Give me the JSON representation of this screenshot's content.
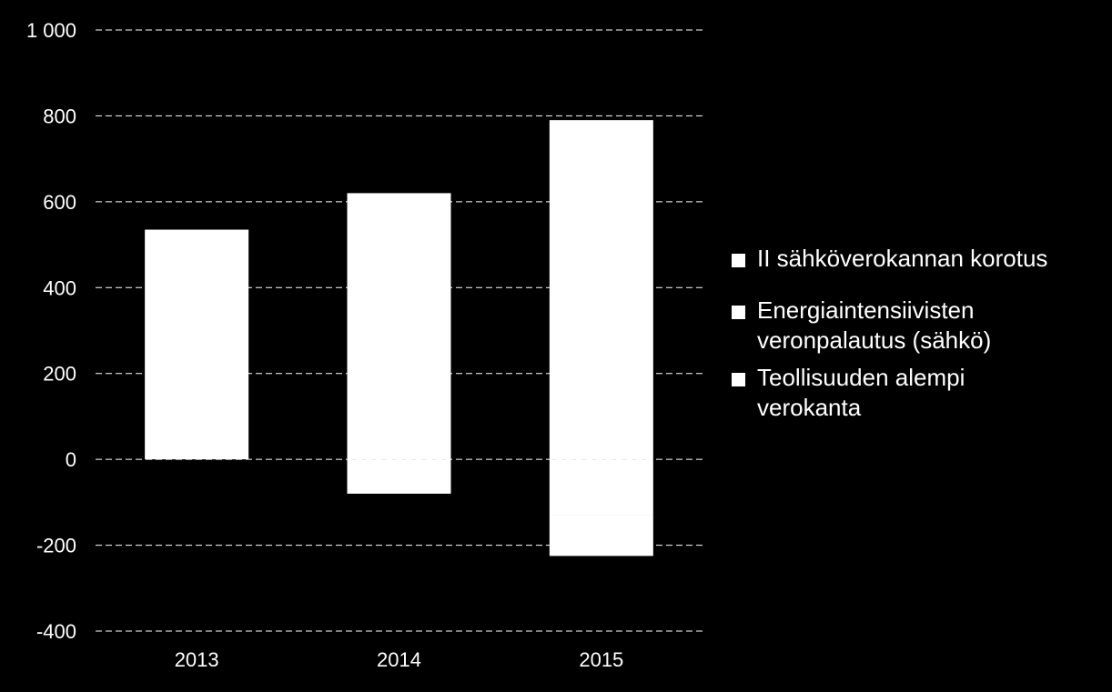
{
  "chart_data": {
    "type": "bar",
    "stacked": true,
    "categories": [
      "2013",
      "2014",
      "2015"
    ],
    "series": [
      {
        "name": "II sähköverokannan korotus",
        "values": [
          535,
          620,
          790
        ]
      },
      {
        "name": "Energiaintensiivisten veronpalautus (sähkö)",
        "values": [
          0,
          -80,
          -130
        ]
      },
      {
        "name": "Teollisuuden alempi verokanta",
        "values": [
          0,
          0,
          -95
        ]
      }
    ],
    "ylim": [
      -400,
      1000
    ],
    "yticks": [
      -400,
      -200,
      0,
      200,
      400,
      600,
      800,
      1000
    ],
    "ytick_labels": [
      "-400",
      "-200",
      "0",
      "200",
      "400",
      "600",
      "800",
      "1 000"
    ],
    "grid": true,
    "legend_position": "right",
    "colors": {
      "background": "#000000",
      "bars": "#ffffff",
      "grid": "#ffffff"
    }
  }
}
